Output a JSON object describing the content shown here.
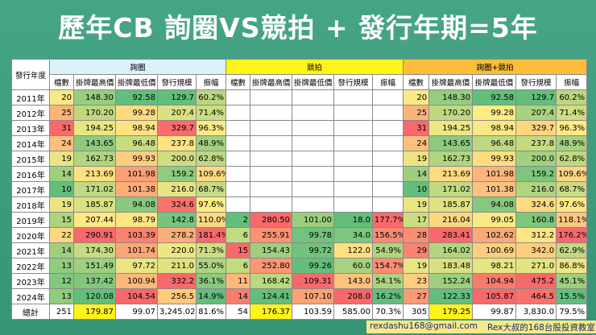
{
  "header": {
    "title": "歷年CB 詢圈VS競拍 + 發行年期=5年"
  },
  "table": {
    "year_header": "發行年度",
    "groups": [
      {
        "name": "詢圈",
        "columns": [
          "檔數",
          "掛牌最高價",
          "掛牌最低價",
          "發行規模",
          "振幅"
        ]
      },
      {
        "name": "競拍",
        "columns": [
          "檔數",
          "掛牌最高價",
          "掛牌最低價",
          "發行規模",
          "振幅"
        ]
      },
      {
        "name": "詢圈+競拍",
        "columns": [
          "檔數",
          "掛牌最高價",
          "掛牌最低價",
          "發行規模",
          "振幅"
        ]
      }
    ],
    "rows": [
      [
        "2011年",
        "20",
        "148.30",
        "92.58",
        "129.7",
        "60.2%",
        null,
        null,
        null,
        null,
        null,
        "20",
        "148.30",
        "92.58",
        "129.7",
        "60.2%"
      ],
      [
        "2012年",
        "25",
        "170.20",
        "99.28",
        "207.4",
        "71.4%",
        null,
        null,
        null,
        null,
        null,
        "25",
        "170.20",
        "99.28",
        "207.4",
        "71.4%"
      ],
      [
        "2013年",
        "31",
        "194.25",
        "98.94",
        "329.7",
        "96.3%",
        null,
        null,
        null,
        null,
        null,
        "31",
        "194.25",
        "98.94",
        "329.7",
        "96.3%"
      ],
      [
        "2014年",
        "24",
        "143.65",
        "96.48",
        "237.8",
        "48.9%",
        null,
        null,
        null,
        null,
        null,
        "24",
        "143.65",
        "96.48",
        "237.8",
        "48.9%"
      ],
      [
        "2015年",
        "19",
        "162.73",
        "99.93",
        "200.0",
        "62.8%",
        null,
        null,
        null,
        null,
        null,
        "19",
        "162.73",
        "99.93",
        "200.0",
        "62.8%"
      ],
      [
        "2016年",
        "14",
        "213.69",
        "101.98",
        "159.2",
        "109.6%",
        null,
        null,
        null,
        null,
        null,
        "14",
        "213.69",
        "101.98",
        "159.2",
        "109.6%"
      ],
      [
        "2017年",
        "10",
        "171.02",
        "101.38",
        "216.0",
        "68.7%",
        null,
        null,
        null,
        null,
        null,
        "10",
        "171.02",
        "101.38",
        "216.0",
        "68.7%"
      ],
      [
        "2018年",
        "19",
        "185.87",
        "94.08",
        "324.6",
        "97.6%",
        null,
        null,
        null,
        null,
        null,
        "19",
        "185.87",
        "94.08",
        "324.6",
        "97.6%"
      ],
      [
        "2019年",
        "15",
        "207.44",
        "98.79",
        "142.8",
        "110.0%",
        "2",
        "280.50",
        "101.00",
        "18.0",
        "177.7%",
        "17",
        "216.04",
        "99.05",
        "160.8",
        "118.1%"
      ],
      [
        "2020年",
        "22",
        "290.91",
        "103.39",
        "278.2",
        "181.4%",
        "6",
        "255.91",
        "99.78",
        "34.0",
        "156.5%",
        "28",
        "283.41",
        "102.62",
        "312.2",
        "176.2%"
      ],
      [
        "2021年",
        "14",
        "174.30",
        "101.74",
        "220.0",
        "71.3%",
        "15",
        "154.43",
        "99.72",
        "122.0",
        "54.9%",
        "29",
        "164.02",
        "100.69",
        "342.0",
        "62.9%"
      ],
      [
        "2022年",
        "13",
        "151.49",
        "97.72",
        "211.0",
        "55.0%",
        "6",
        "252.80",
        "99.26",
        "60.0",
        "154.7%",
        "19",
        "183.48",
        "98.21",
        "271.0",
        "86.8%"
      ],
      [
        "2023年",
        "12",
        "137.42",
        "100.94",
        "332.2",
        "36.1%",
        "11",
        "168.42",
        "109.31",
        "143.0",
        "54.1%",
        "23",
        "152.24",
        "104.94",
        "475.2",
        "45.1%"
      ],
      [
        "2024年",
        "13",
        "120.08",
        "104.54",
        "256.5",
        "14.9%",
        "14",
        "124.41",
        "107.10",
        "208.0",
        "16.2%",
        "27",
        "122.33",
        "105.87",
        "464.5",
        "15.5%"
      ],
      [
        "總計",
        "251",
        "179.87",
        "99.07",
        "3,245.02",
        "81.6%",
        "54",
        "176.37",
        "103.59",
        "585.00",
        "70.3%",
        "305",
        "179.25",
        "99.87",
        "3,830.0",
        "79.5%"
      ]
    ]
  },
  "footer": {
    "email": "rexdashu168@gmail.com",
    "channel": "Rex大叔的168台股投資教室"
  }
}
